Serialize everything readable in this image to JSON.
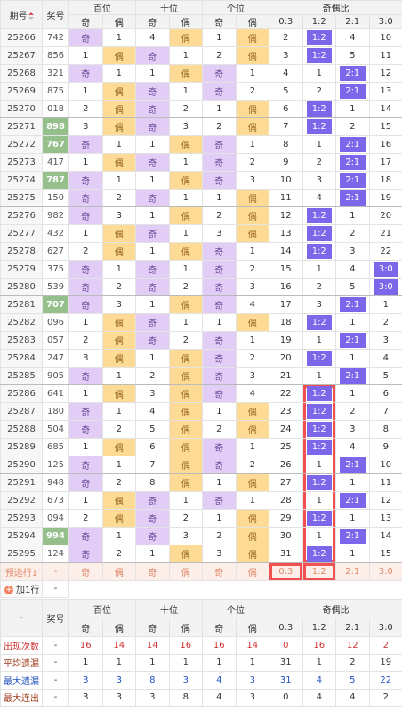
{
  "table": {
    "header": {
      "period": "期号",
      "number": "奖号",
      "groups": [
        "百位",
        "十位",
        "个位",
        "奇偶比"
      ],
      "sub": [
        "奇",
        "偶",
        "奇",
        "偶",
        "奇",
        "偶",
        "0:3",
        "1:2",
        "2:1",
        "3:0"
      ]
    },
    "rows": [
      {
        "period": "25266",
        "number": "742",
        "cells": [
          "奇",
          1,
          4,
          "偶",
          1,
          "偶",
          2,
          "1:2",
          4,
          10
        ]
      },
      {
        "period": "25267",
        "number": "856",
        "cells": [
          1,
          "偶",
          "奇",
          1,
          2,
          "偶",
          3,
          "1:2",
          5,
          11
        ]
      },
      {
        "period": "25268",
        "number": "321",
        "cells": [
          "奇",
          1,
          1,
          "偶",
          "奇",
          1,
          4,
          1,
          "2:1",
          12
        ]
      },
      {
        "period": "25269",
        "number": "875",
        "cells": [
          1,
          "偶",
          "奇",
          1,
          "奇",
          2,
          5,
          2,
          "2:1",
          13
        ]
      },
      {
        "period": "25270",
        "number": "018",
        "cells": [
          2,
          "偶",
          "奇",
          2,
          1,
          "偶",
          6,
          "1:2",
          1,
          14
        ]
      },
      {
        "period": "25271",
        "number": "898",
        "cells": [
          3,
          "偶",
          "奇",
          3,
          2,
          "偶",
          7,
          "1:2",
          2,
          15
        ]
      },
      {
        "period": "25272",
        "number": "767",
        "cells": [
          "奇",
          1,
          1,
          "偶",
          "奇",
          1,
          8,
          1,
          "2:1",
          16
        ]
      },
      {
        "period": "25273",
        "number": "417",
        "cells": [
          1,
          "偶",
          "奇",
          1,
          "奇",
          2,
          9,
          2,
          "2:1",
          17
        ]
      },
      {
        "period": "25274",
        "number": "787",
        "cells": [
          "奇",
          1,
          1,
          "偶",
          "奇",
          3,
          10,
          3,
          "2:1",
          18
        ]
      },
      {
        "period": "25275",
        "number": "150",
        "cells": [
          "奇",
          2,
          "奇",
          1,
          1,
          "偶",
          11,
          4,
          "2:1",
          19
        ]
      },
      {
        "period": "25276",
        "number": "982",
        "cells": [
          "奇",
          3,
          1,
          "偶",
          2,
          "偶",
          12,
          "1:2",
          1,
          20
        ]
      },
      {
        "period": "25277",
        "number": "432",
        "cells": [
          1,
          "偶",
          "奇",
          1,
          3,
          "偶",
          13,
          "1:2",
          2,
          21
        ]
      },
      {
        "period": "25278",
        "number": "627",
        "cells": [
          2,
          "偶",
          1,
          "偶",
          "奇",
          1,
          14,
          "1:2",
          3,
          22
        ]
      },
      {
        "period": "25279",
        "number": "375",
        "cells": [
          "奇",
          1,
          "奇",
          1,
          "奇",
          2,
          15,
          1,
          4,
          "3:0"
        ]
      },
      {
        "period": "25280",
        "number": "539",
        "cells": [
          "奇",
          2,
          "奇",
          2,
          "奇",
          3,
          16,
          2,
          5,
          "3:0"
        ]
      },
      {
        "period": "25281",
        "number": "707",
        "cells": [
          "奇",
          3,
          1,
          "偶",
          "奇",
          4,
          17,
          3,
          "2:1",
          1
        ]
      },
      {
        "period": "25282",
        "number": "096",
        "cells": [
          1,
          "偶",
          "奇",
          1,
          1,
          "偶",
          18,
          "1:2",
          1,
          2
        ]
      },
      {
        "period": "25283",
        "number": "057",
        "cells": [
          2,
          "偶",
          "奇",
          2,
          "奇",
          1,
          19,
          1,
          "2:1",
          3
        ]
      },
      {
        "period": "25284",
        "number": "247",
        "cells": [
          3,
          "偶",
          1,
          "偶",
          "奇",
          2,
          20,
          "1:2",
          1,
          4
        ]
      },
      {
        "period": "25285",
        "number": "905",
        "cells": [
          "奇",
          1,
          2,
          "偶",
          "奇",
          3,
          21,
          1,
          "2:1",
          5
        ]
      },
      {
        "period": "25286",
        "number": "641",
        "cells": [
          1,
          "偶",
          3,
          "偶",
          "奇",
          4,
          22,
          "1:2",
          1,
          6
        ]
      },
      {
        "period": "25287",
        "number": "180",
        "cells": [
          "奇",
          1,
          4,
          "偶",
          1,
          "偶",
          23,
          "1:2",
          2,
          7
        ]
      },
      {
        "period": "25288",
        "number": "504",
        "cells": [
          "奇",
          2,
          5,
          "偶",
          2,
          "偶",
          24,
          "1:2",
          3,
          8
        ]
      },
      {
        "period": "25289",
        "number": "685",
        "cells": [
          1,
          "偶",
          6,
          "偶",
          "奇",
          1,
          25,
          "1:2",
          4,
          9
        ]
      },
      {
        "period": "25290",
        "number": "125",
        "cells": [
          "奇",
          1,
          7,
          "偶",
          "奇",
          2,
          26,
          1,
          "2:1",
          10
        ]
      },
      {
        "period": "25291",
        "number": "948",
        "cells": [
          "奇",
          2,
          8,
          "偶",
          1,
          "偶",
          27,
          "1:2",
          1,
          11
        ]
      },
      {
        "period": "25292",
        "number": "673",
        "cells": [
          1,
          "偶",
          "奇",
          1,
          "奇",
          1,
          28,
          1,
          "2:1",
          12
        ]
      },
      {
        "period": "25293",
        "number": "094",
        "cells": [
          2,
          "偶",
          "奇",
          2,
          1,
          "偶",
          29,
          "1:2",
          1,
          13
        ]
      },
      {
        "period": "25294",
        "number": "994",
        "cells": [
          "奇",
          1,
          "奇",
          3,
          2,
          "偶",
          30,
          1,
          "2:1",
          14
        ]
      },
      {
        "period": "25295",
        "number": "124",
        "cells": [
          "奇",
          2,
          1,
          "偶",
          3,
          "偶",
          31,
          "1:2",
          1,
          15
        ]
      }
    ],
    "preselect": {
      "period": "预选行1",
      "number": "-",
      "cells": [
        "奇",
        "偶",
        "奇",
        "偶",
        "奇",
        "偶",
        "0:3",
        "1:2",
        "2:1",
        "3:0"
      ]
    },
    "add_row": {
      "label": "加1行",
      "number": "-"
    }
  },
  "stats": {
    "header": {
      "corner": "-",
      "number": "奖号",
      "groups": [
        "百位",
        "十位",
        "个位",
        "奇偶比"
      ],
      "sub": [
        "奇",
        "偶",
        "奇",
        "偶",
        "奇",
        "偶",
        "0:3",
        "1:2",
        "2:1",
        "3:0"
      ]
    },
    "rows": [
      {
        "label": "出现次数",
        "number": "-",
        "values": [
          16,
          14,
          14,
          16,
          16,
          14,
          0,
          16,
          12,
          2
        ]
      },
      {
        "label": "平均遗漏",
        "number": "-",
        "values": [
          1,
          1,
          1,
          1,
          1,
          1,
          31,
          1,
          2,
          19
        ]
      },
      {
        "label": "最大遗漏",
        "number": "-",
        "values": [
          3,
          3,
          8,
          3,
          4,
          3,
          31,
          4,
          5,
          22
        ]
      },
      {
        "label": "最大连出",
        "number": "-",
        "values": [
          3,
          3,
          3,
          8,
          4,
          3,
          0,
          4,
          4,
          2
        ]
      }
    ]
  }
}
